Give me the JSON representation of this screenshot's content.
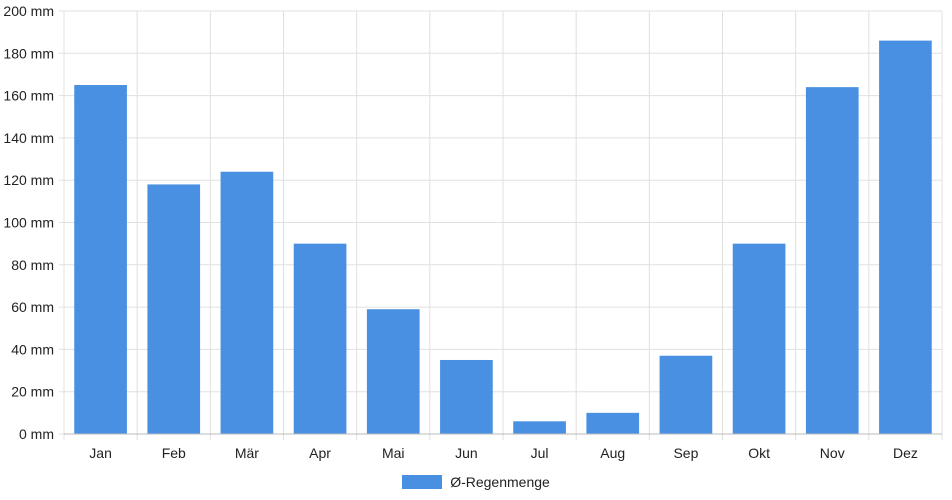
{
  "chart_data": {
    "type": "bar",
    "title": "",
    "xlabel": "",
    "ylabel": "",
    "categories": [
      "Jan",
      "Feb",
      "Mär",
      "Apr",
      "Mai",
      "Jun",
      "Jul",
      "Aug",
      "Sep",
      "Okt",
      "Nov",
      "Dez"
    ],
    "series": [
      {
        "name": "Ø-Regenmenge",
        "values": [
          165,
          118,
          124,
          90,
          59,
          35,
          6,
          10,
          37,
          90,
          164,
          186
        ]
      }
    ],
    "ylim": [
      0,
      200
    ],
    "yticks": [
      0,
      20,
      40,
      60,
      80,
      100,
      120,
      140,
      160,
      180,
      200
    ],
    "y_unit_suffix": " mm",
    "grid": true,
    "legend_position": "bottom-center",
    "colors": {
      "bar": "#4a90e2",
      "grid": "#e0e0e0",
      "axis": "#bbbbbb",
      "text": "#222222"
    }
  }
}
